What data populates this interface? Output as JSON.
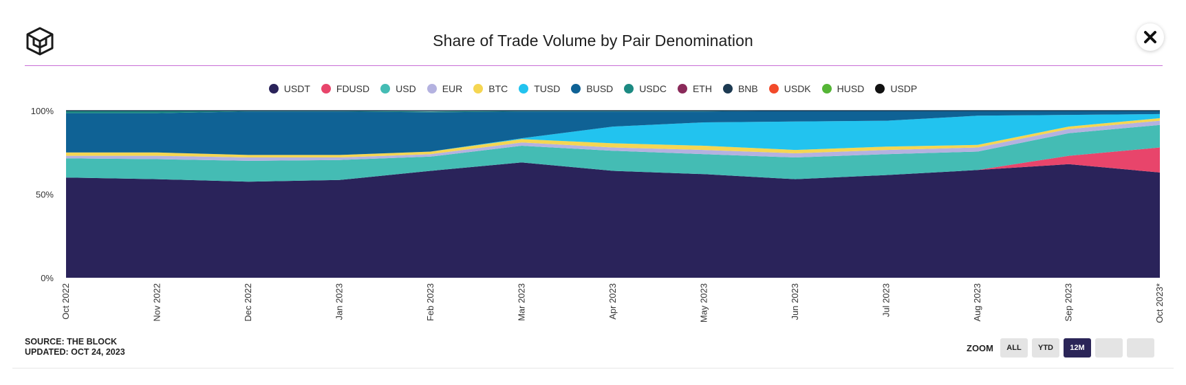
{
  "header": {
    "title": "Share of Trade Volume by Pair Denomination"
  },
  "icons": {
    "logo": "the-block-cube-logo-icon",
    "close": "close-icon"
  },
  "legend": [
    {
      "label": "USDT",
      "color": "#2a235a"
    },
    {
      "label": "FDUSD",
      "color": "#e8456b"
    },
    {
      "label": "USD",
      "color": "#44bcb4"
    },
    {
      "label": "EUR",
      "color": "#b4b2e0"
    },
    {
      "label": "BTC",
      "color": "#f5d652"
    },
    {
      "label": "TUSD",
      "color": "#22c3ef"
    },
    {
      "label": "BUSD",
      "color": "#0f6295"
    },
    {
      "label": "USDC",
      "color": "#1c8a82"
    },
    {
      "label": "ETH",
      "color": "#8a2a5a"
    },
    {
      "label": "BNB",
      "color": "#1d3a52"
    },
    {
      "label": "USDK",
      "color": "#f24a2a"
    },
    {
      "label": "HUSD",
      "color": "#55b536"
    },
    {
      "label": "USDP",
      "color": "#111111"
    }
  ],
  "chart_data": {
    "type": "area",
    "stacked": "percent",
    "categories": [
      "Oct 2022",
      "Nov 2022",
      "Dec 2022",
      "Jan 2023",
      "Feb 2023",
      "Mar 2023",
      "Apr 2023",
      "May 2023",
      "Jun 2023",
      "Jul 2023",
      "Aug 2023",
      "Sep 2023",
      "Oct 2023*"
    ],
    "y_ticks": [
      "0%",
      "50%",
      "100%"
    ],
    "ylim": [
      0,
      100
    ],
    "series": [
      {
        "name": "USDT",
        "values": [
          60,
          59,
          57.5,
          58.5,
          64,
          69,
          64,
          62,
          59,
          61.5,
          64.5,
          68,
          63
        ]
      },
      {
        "name": "FDUSD",
        "values": [
          0,
          0,
          0,
          0,
          0,
          0,
          0,
          0,
          0,
          0,
          0,
          5,
          15
        ]
      },
      {
        "name": "USD",
        "values": [
          11.5,
          12,
          12.5,
          12,
          8.5,
          10,
          12,
          12,
          13,
          12.5,
          11,
          13.5,
          13.5
        ]
      },
      {
        "name": "EUR",
        "values": [
          1.5,
          2,
          2,
          1.5,
          1.5,
          2,
          2,
          2.5,
          2.5,
          2.5,
          2.5,
          2.5,
          2.5
        ]
      },
      {
        "name": "BTC",
        "values": [
          2,
          2,
          1.5,
          1.5,
          1.5,
          2,
          2.5,
          2.5,
          2,
          2,
          1.5,
          1.5,
          1.5
        ]
      },
      {
        "name": "TUSD",
        "values": [
          0,
          0,
          0,
          0,
          0,
          0.5,
          10,
          14,
          17,
          15.5,
          17.5,
          7,
          2.5
        ]
      },
      {
        "name": "BUSD",
        "values": [
          23.5,
          23.5,
          26,
          26,
          23.5,
          16,
          9,
          6.5,
          6.5,
          6,
          3,
          2.5,
          2
        ]
      },
      {
        "name": "USDC",
        "values": [
          1.5,
          1.5,
          0.5,
          0.5,
          0.5,
          0.5,
          0.5,
          0.5,
          0.5,
          0.5,
          0.5,
          0.5,
          0.5
        ]
      },
      {
        "name": "ETH",
        "values": [
          0,
          0,
          0,
          0,
          0,
          0,
          0,
          0,
          0,
          0,
          0,
          0,
          0
        ]
      },
      {
        "name": "BNB",
        "values": [
          0,
          0,
          0,
          0,
          0,
          0,
          0,
          0,
          0,
          0,
          0,
          0,
          0
        ]
      },
      {
        "name": "USDK",
        "values": [
          0,
          0,
          0,
          0,
          0,
          0,
          0,
          0,
          0,
          0,
          0,
          0,
          0
        ]
      },
      {
        "name": "HUSD",
        "values": [
          0,
          0,
          0,
          0,
          0,
          0,
          0,
          0,
          0,
          0,
          0,
          0,
          0
        ]
      },
      {
        "name": "USDP",
        "values": [
          0,
          0,
          0,
          0,
          0,
          0,
          0,
          0,
          0,
          0,
          0,
          0,
          0
        ]
      }
    ],
    "legend_position": "top-center",
    "grid": false
  },
  "footer": {
    "source": "SOURCE: THE BLOCK",
    "updated": "UPDATED: OCT 24, 2023",
    "zoom_label": "ZOOM",
    "zoom_buttons": [
      {
        "label": "ALL",
        "active": false
      },
      {
        "label": "YTD",
        "active": false
      },
      {
        "label": "12M",
        "active": true
      },
      {
        "label": "",
        "active": false
      },
      {
        "label": "",
        "active": false
      }
    ]
  }
}
